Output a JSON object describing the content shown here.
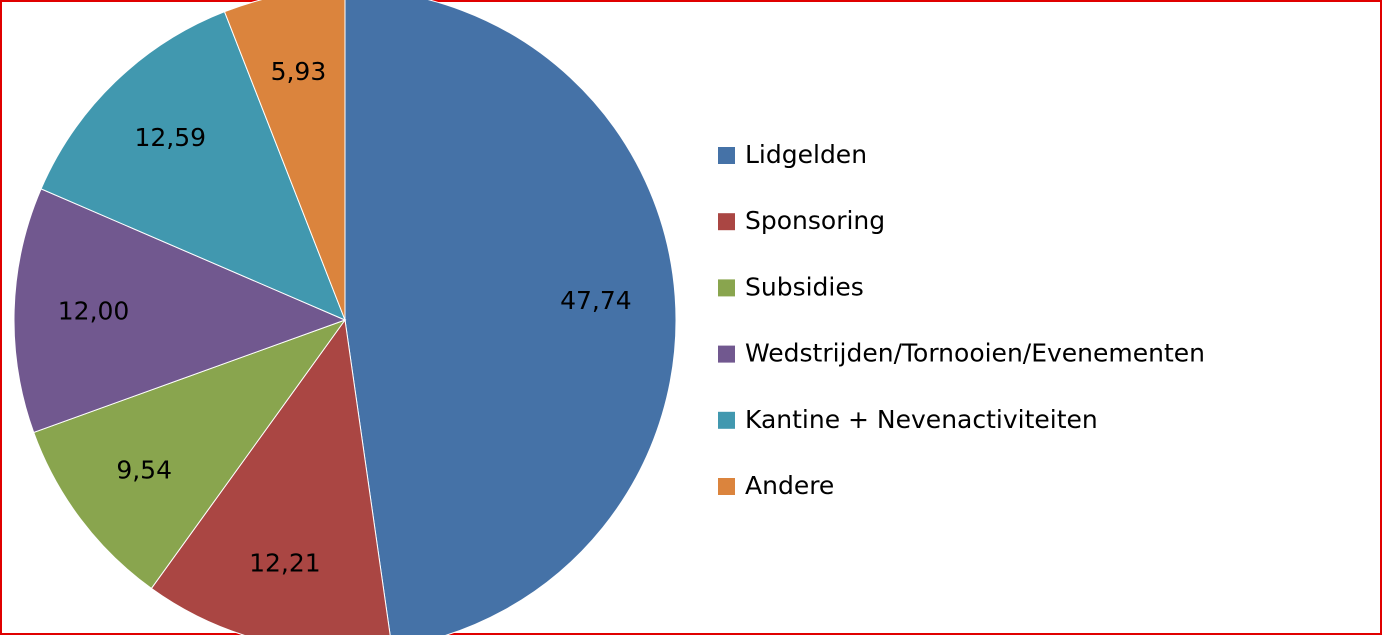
{
  "chart_data": {
    "type": "pie",
    "categories": [
      "Lidgelden",
      "Sponsoring",
      "Subsidies",
      "Wedstrijden/Tornooien/Evenementen",
      "Kantine + Nevenactiviteiten",
      "Andere"
    ],
    "values": [
      47.74,
      12.21,
      9.54,
      12.0,
      12.59,
      5.93
    ],
    "value_labels": [
      "47,74",
      "12,21",
      "9,54",
      "12,00",
      "12,59",
      "5,93"
    ],
    "colors": [
      "#4572a7",
      "#aa4643",
      "#89a54e",
      "#71588f",
      "#4198af",
      "#db843d"
    ],
    "legend": "right"
  }
}
